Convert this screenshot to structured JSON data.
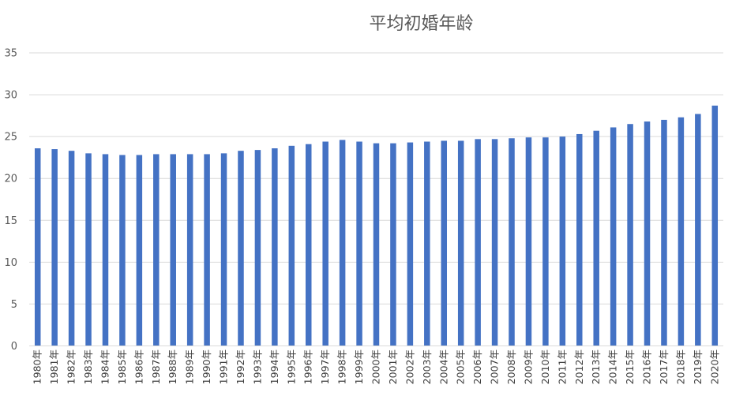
{
  "chart_data": {
    "type": "bar",
    "title": "平均初婚年龄",
    "xlabel": "",
    "ylabel": "",
    "ylim": [
      0,
      35
    ],
    "yticks": [
      0,
      5,
      10,
      15,
      20,
      25,
      30,
      35
    ],
    "grid": true,
    "legend": "none",
    "bar_color": "#4472C4",
    "categories": [
      "1980年",
      "1981年",
      "1982年",
      "1983年",
      "1984年",
      "1985年",
      "1986年",
      "1987年",
      "1988年",
      "1989年",
      "1990年",
      "1991年",
      "1992年",
      "1993年",
      "1994年",
      "1995年",
      "1996年",
      "1997年",
      "1998年",
      "1999年",
      "2000年",
      "2001年",
      "2002年",
      "2003年",
      "2004年",
      "2005年",
      "2006年",
      "2007年",
      "2008年",
      "2009年",
      "2010年",
      "2011年",
      "2012年",
      "2013年",
      "2014年",
      "2015年",
      "2016年",
      "2017年",
      "2018年",
      "2019年",
      "2020年"
    ],
    "values": [
      23.6,
      23.5,
      23.3,
      23.0,
      22.9,
      22.8,
      22.8,
      22.9,
      22.9,
      22.9,
      22.9,
      23.0,
      23.3,
      23.4,
      23.6,
      23.9,
      24.1,
      24.4,
      24.6,
      24.4,
      24.2,
      24.2,
      24.3,
      24.4,
      24.5,
      24.5,
      24.7,
      24.7,
      24.8,
      24.9,
      24.9,
      25.0,
      25.3,
      25.7,
      26.1,
      26.5,
      26.8,
      27.0,
      27.3,
      27.7,
      28.7
    ]
  }
}
